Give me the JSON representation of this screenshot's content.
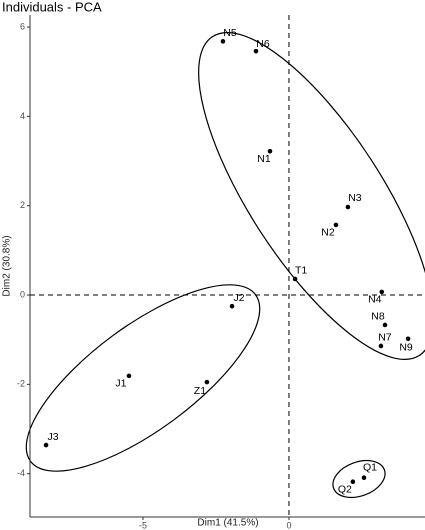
{
  "chart_data": {
    "type": "scatter",
    "title": "Individuals - PCA",
    "x_label": "Dim1 (41.5%)",
    "y_label": "Dim2 (30.8%)",
    "xlim": [
      -8.87,
      4.66
    ],
    "ylim": [
      -4.97,
      6.27
    ],
    "xticks": [
      -5,
      0
    ],
    "yticks": [
      -4,
      -2,
      0,
      2,
      4,
      6
    ],
    "hline": 0,
    "vline": 0,
    "color": "#000000",
    "labels": [
      "N5",
      "N6",
      "N1",
      "N3",
      "N2",
      "T1",
      "N4",
      "N8",
      "N7",
      "N9",
      "J2",
      "J1",
      "Z1",
      "J3",
      "Q1",
      "Q2"
    ],
    "x": [
      -2.26,
      -1.13,
      -0.65,
      2.02,
      1.61,
      0.21,
      3.18,
      3.29,
      3.15,
      4.08,
      -1.95,
      -5.48,
      -2.81,
      -8.32,
      2.57,
      2.19
    ],
    "y": [
      5.68,
      5.46,
      3.22,
      1.97,
      1.57,
      0.36,
      0.07,
      -0.67,
      -1.14,
      -0.98,
      -0.25,
      -1.81,
      -1.95,
      -3.36,
      -4.09,
      -4.18
    ]
  }
}
